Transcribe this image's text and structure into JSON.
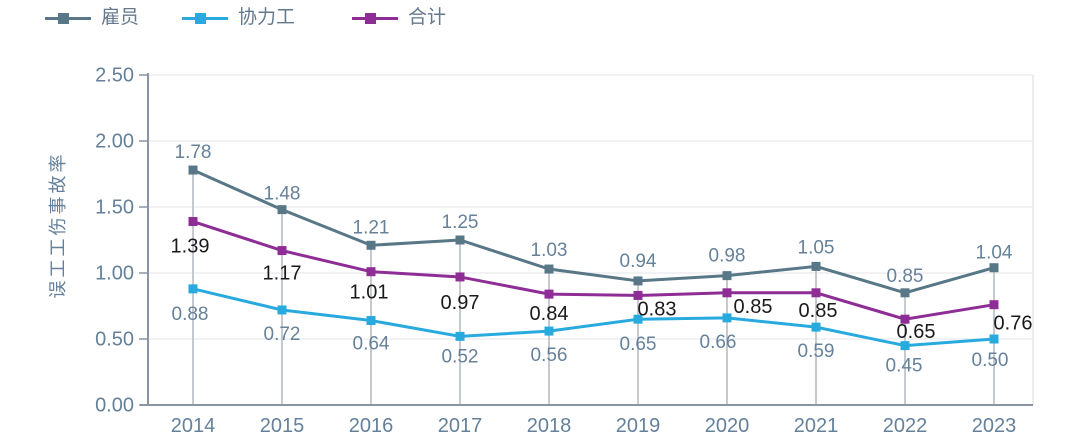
{
  "chart_data": {
    "type": "line",
    "title": "",
    "xlabel": "",
    "ylabel": "误工工伤事故率",
    "categories": [
      "2014",
      "2015",
      "2016",
      "2017",
      "2018",
      "2019",
      "2020",
      "2021",
      "2022",
      "2023"
    ],
    "series": [
      {
        "name": "雇员",
        "color": "#587787",
        "label_color": "#66819a",
        "values": [
          1.78,
          1.48,
          1.21,
          1.25,
          1.03,
          0.94,
          0.98,
          1.05,
          0.85,
          1.04
        ]
      },
      {
        "name": "协力工",
        "color": "#29aadf",
        "label_color": "#66819a",
        "values": [
          0.88,
          0.72,
          0.64,
          0.52,
          0.56,
          0.65,
          0.66,
          0.59,
          0.45,
          0.5
        ]
      },
      {
        "name": "合计",
        "color": "#8f2d96",
        "label_color": "#1a1a1a",
        "values": [
          1.39,
          1.17,
          1.01,
          0.97,
          0.84,
          0.83,
          0.85,
          0.85,
          0.65,
          0.76
        ]
      }
    ],
    "ylim": [
      0,
      2.5
    ],
    "ytick_step": 0.5,
    "yticks": [
      "0.00",
      "0.50",
      "1.00",
      "1.50",
      "2.00",
      "2.50"
    ],
    "grid": true,
    "drop_lines": true,
    "value_labels": true,
    "legend_position": "top-left"
  },
  "style": {
    "axis_text_color": "#64809a",
    "axis_line_color": "#8895a5",
    "drop_line_color": "#b4b8bd",
    "grid_color": "#ededf0",
    "frame_color": "#e6e6ea"
  }
}
